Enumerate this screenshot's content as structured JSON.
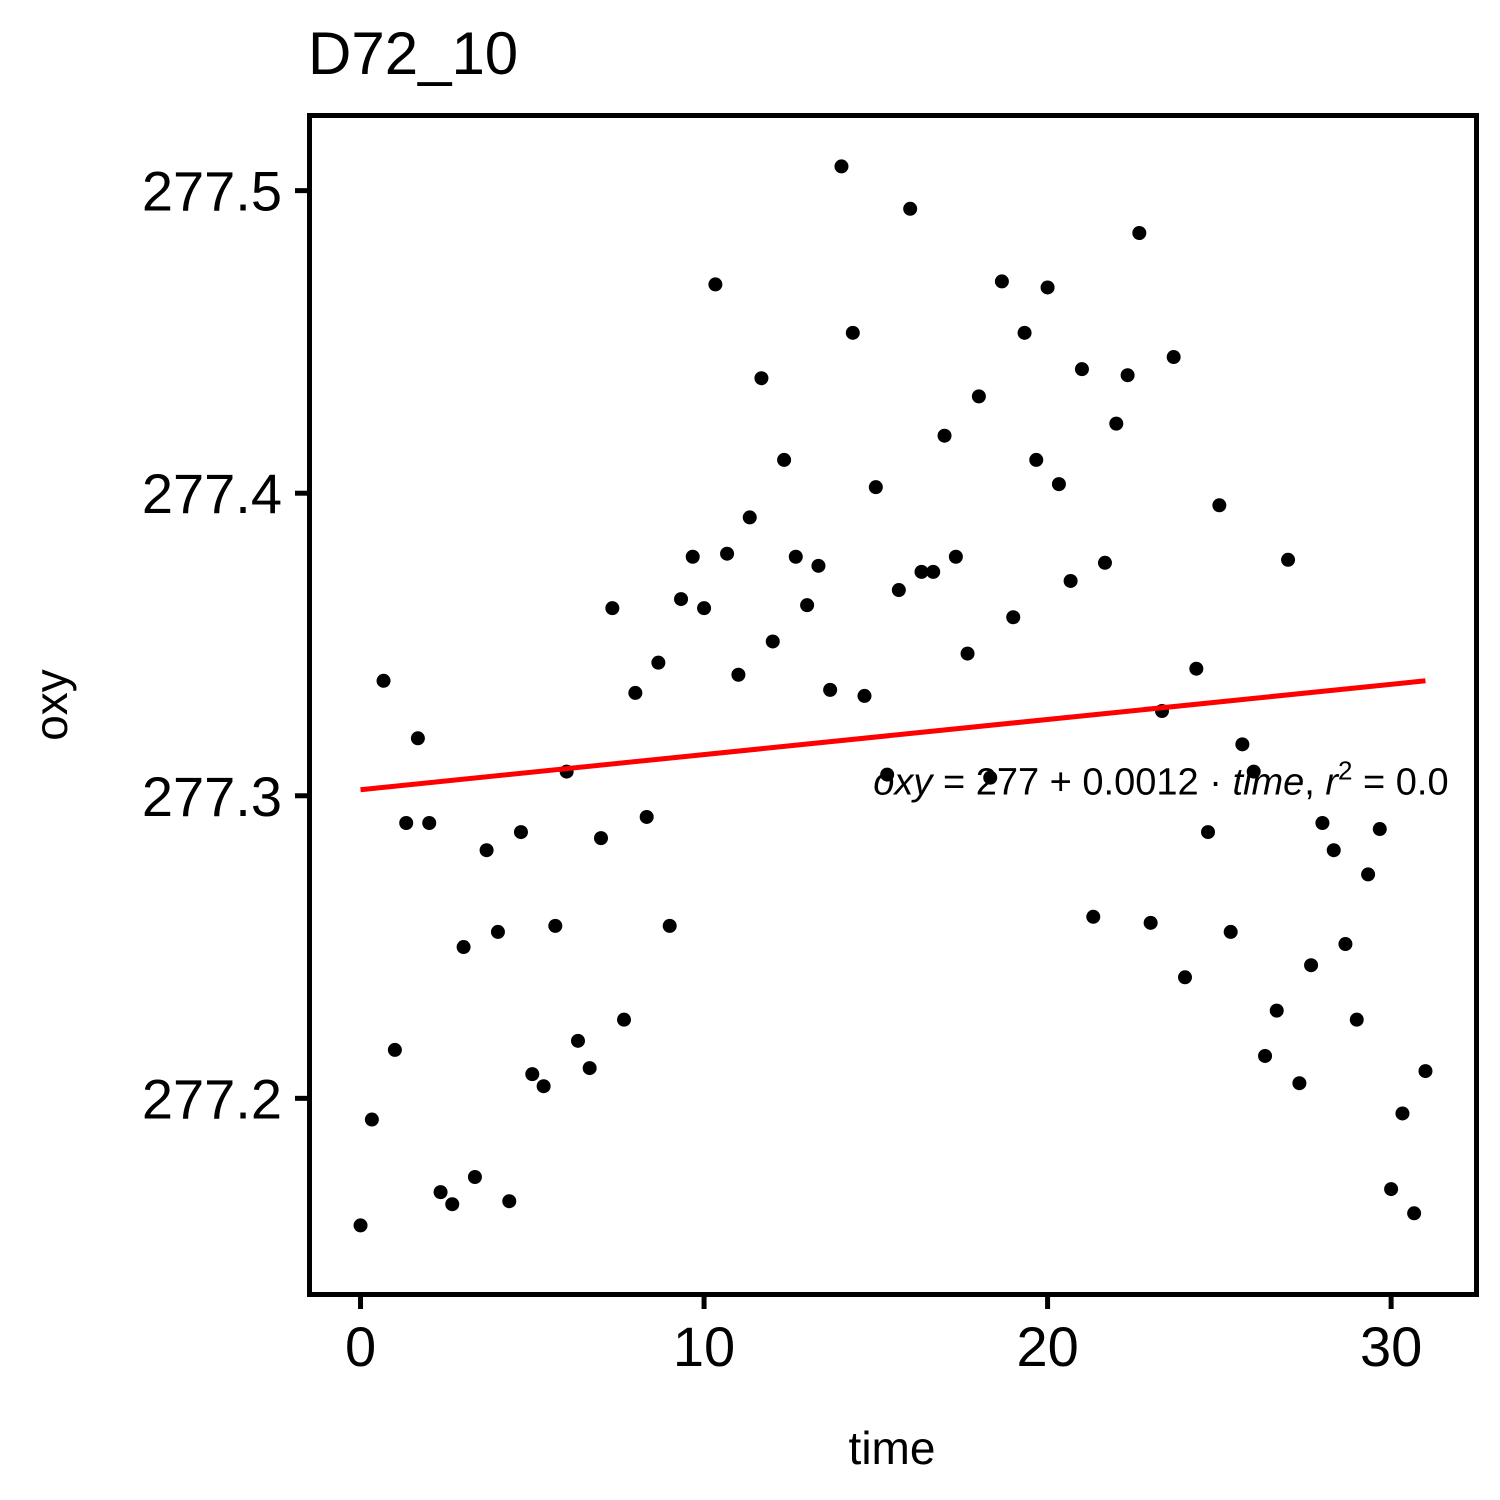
{
  "chart_data": {
    "type": "scatter",
    "title": "D72_10",
    "xlabel": "time",
    "ylabel": "oxy",
    "xlim": [
      -1.5,
      32.5
    ],
    "ylim": [
      277.135,
      277.525
    ],
    "x_ticks": [
      0,
      10,
      20,
      30
    ],
    "x_tick_labels": [
      "0",
      "10",
      "20",
      "30"
    ],
    "y_ticks": [
      277.2,
      277.3,
      277.4,
      277.5
    ],
    "y_tick_labels": [
      "277.2",
      "277.3",
      "277.4",
      "277.5"
    ],
    "grid": false,
    "series": [
      {
        "type": "scatter",
        "color": "#000000",
        "x": [
          0,
          0.33,
          0.67,
          1,
          1.33,
          1.67,
          2,
          2.33,
          2.67,
          3,
          3.33,
          3.67,
          4,
          4.33,
          4.67,
          5,
          5.33,
          5.67,
          6,
          6.33,
          6.67,
          7,
          7.33,
          7.67,
          8,
          8.33,
          8.67,
          9,
          9.33,
          9.67,
          10,
          10.33,
          10.67,
          11,
          11.33,
          11.67,
          12,
          12.33,
          12.67,
          13,
          13.33,
          13.67,
          14,
          14.33,
          14.67,
          15,
          15.33,
          15.67,
          16,
          16.33,
          16.67,
          17,
          17.33,
          17.67,
          18,
          18.33,
          18.67,
          19,
          19.33,
          19.67,
          20,
          20.33,
          20.67,
          21,
          21.33,
          21.67,
          22,
          22.33,
          22.67,
          23,
          23.33,
          23.67,
          24,
          24.33,
          24.67,
          25,
          25.33,
          25.67,
          26,
          26.33,
          26.67,
          27,
          27.33,
          27.67,
          28,
          28.33,
          28.67,
          29,
          29.33,
          29.67,
          30,
          30.33,
          30.67,
          31
        ],
        "y": [
          277.158,
          277.193,
          277.338,
          277.216,
          277.291,
          277.319,
          277.291,
          277.169,
          277.165,
          277.25,
          277.174,
          277.282,
          277.255,
          277.166,
          277.288,
          277.208,
          277.204,
          277.257,
          277.308,
          277.219,
          277.21,
          277.286,
          277.362,
          277.226,
          277.334,
          277.293,
          277.344,
          277.257,
          277.365,
          277.379,
          277.362,
          277.469,
          277.38,
          277.34,
          277.392,
          277.438,
          277.351,
          277.411,
          277.379,
          277.363,
          277.376,
          277.335,
          277.508,
          277.453,
          277.333,
          277.402,
          277.307,
          277.368,
          277.494,
          277.374,
          277.374,
          277.419,
          277.379,
          277.347,
          277.432,
          277.306,
          277.47,
          277.359,
          277.453,
          277.411,
          277.468,
          277.403,
          277.371,
          277.441,
          277.26,
          277.377,
          277.423,
          277.439,
          277.486,
          277.258,
          277.328,
          277.445,
          277.24,
          277.342,
          277.288,
          277.396,
          277.255,
          277.317,
          277.308,
          277.214,
          277.229,
          277.378,
          277.205,
          277.244,
          277.291,
          277.282,
          277.251,
          277.226,
          277.274,
          277.289,
          277.17,
          277.195,
          277.162,
          277.209
        ]
      },
      {
        "type": "line",
        "color": "#ff0000",
        "x": [
          0,
          31
        ],
        "y": [
          277.302,
          277.338
        ]
      }
    ],
    "annotations": [
      {
        "x": 23.3,
        "y": 277.305,
        "parts": [
          {
            "t": "oxy",
            "i": true,
            "sup": false
          },
          {
            "t": " = ",
            "i": false,
            "sup": false
          },
          {
            "t": "277 + 0.0012 · ",
            "i": false,
            "sup": false
          },
          {
            "t": "time",
            "i": true,
            "sup": false
          },
          {
            "t": ",  ",
            "i": false,
            "sup": false
          },
          {
            "t": "r",
            "i": true,
            "sup": false
          },
          {
            "t": "2",
            "i": false,
            "sup": true
          },
          {
            "t": " = 0.0",
            "i": false,
            "sup": false
          }
        ]
      }
    ]
  }
}
